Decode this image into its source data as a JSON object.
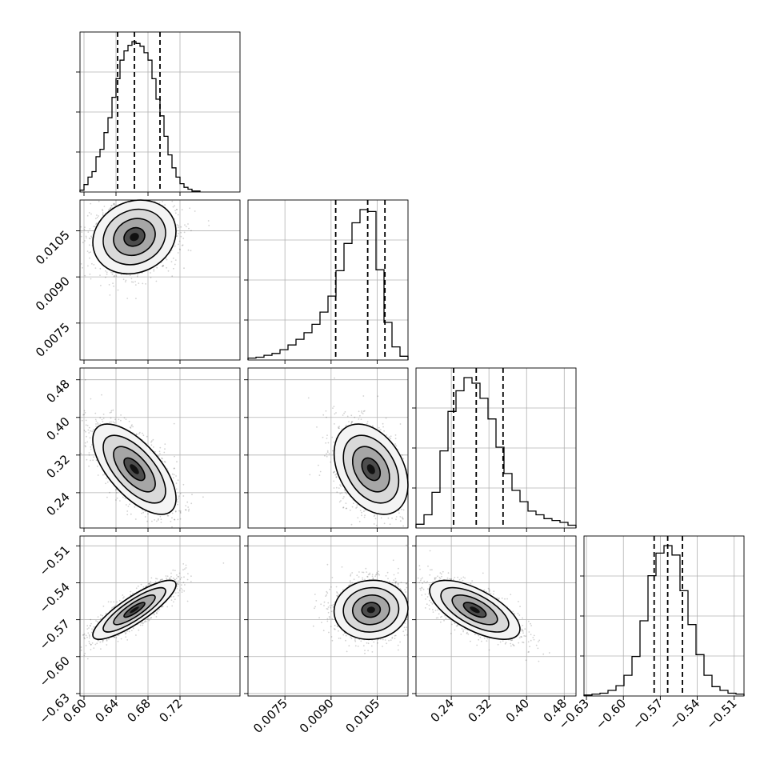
{
  "chart_data": {
    "type": "corner",
    "grid": true,
    "params": [
      {
        "range": [
          0.595,
          0.795
        ],
        "ticks": [
          0.6,
          0.64,
          0.68,
          0.72
        ],
        "tick_labels": [
          "0.60",
          "0.64",
          "0.68",
          "0.72"
        ],
        "median": 0.663,
        "q16": 0.642,
        "q84": 0.695,
        "mean": 0.663,
        "sd": 0.026
      },
      {
        "range": [
          0.0063,
          0.0115
        ],
        "ticks": [
          0.0075,
          0.009,
          0.0105
        ],
        "tick_labels": [
          "0.0075",
          "0.0090",
          "0.0105"
        ],
        "median": 0.01019,
        "q16": 0.00915,
        "q84": 0.01075,
        "mean": 0.0103,
        "sd": 0.0006
      },
      {
        "range": [
          0.165,
          0.505
        ],
        "ticks": [
          0.24,
          0.32,
          0.4,
          0.48
        ],
        "tick_labels": [
          "0.24",
          "0.32",
          "0.40",
          "0.48"
        ],
        "median": 0.293,
        "q16": 0.245,
        "q84": 0.35,
        "mean": 0.29,
        "sd": 0.048
      },
      {
        "range": [
          -0.632,
          -0.502
        ],
        "ticks": [
          -0.63,
          -0.6,
          -0.57,
          -0.54,
          -0.51
        ],
        "tick_labels": [
          "−0.63",
          "−0.60",
          "−0.57",
          "−0.54",
          "−0.51"
        ],
        "median": -0.564,
        "q16": -0.575,
        "q84": -0.552,
        "mean": -0.562,
        "sd": 0.012
      }
    ],
    "histograms": [
      {
        "param": 0,
        "bin_edges": [
          0.595,
          0.6,
          0.605,
          0.61,
          0.615,
          0.62,
          0.625,
          0.63,
          0.635,
          0.64,
          0.645,
          0.65,
          0.655,
          0.66,
          0.665,
          0.67,
          0.675,
          0.68,
          0.685,
          0.69,
          0.695,
          0.7,
          0.705,
          0.71,
          0.715,
          0.72,
          0.725,
          0.73,
          0.735,
          0.74,
          0.745
        ],
        "counts": [
          2,
          8,
          16,
          22,
          38,
          46,
          64,
          80,
          102,
          122,
          142,
          152,
          158,
          162,
          160,
          157,
          150,
          142,
          122,
          100,
          82,
          60,
          40,
          26,
          16,
          9,
          5,
          3,
          1,
          1
        ]
      },
      {
        "param": 1,
        "bin_edges": [
          0.0063,
          0.00656,
          0.00682,
          0.00708,
          0.00734,
          0.0076,
          0.00786,
          0.00812,
          0.00838,
          0.00864,
          0.0089,
          0.00916,
          0.00942,
          0.00968,
          0.00994,
          0.0102,
          0.01046,
          0.01072,
          0.01098,
          0.01124,
          0.0115
        ],
        "counts": [
          2,
          3,
          5,
          7,
          11,
          16,
          22,
          29,
          38,
          51,
          68,
          95,
          124,
          146,
          160,
          158,
          96,
          40,
          14,
          4
        ]
      },
      {
        "param": 2,
        "bin_edges": [
          0.165,
          0.182,
          0.199,
          0.216,
          0.233,
          0.25,
          0.267,
          0.284,
          0.301,
          0.318,
          0.335,
          0.352,
          0.369,
          0.386,
          0.403,
          0.42,
          0.437,
          0.454,
          0.471,
          0.488,
          0.505
        ],
        "counts": [
          4,
          14,
          38,
          82,
          124,
          146,
          160,
          154,
          138,
          116,
          86,
          58,
          40,
          28,
          18,
          14,
          10,
          8,
          6,
          3
        ]
      },
      {
        "param": 3,
        "bin_edges": [
          -0.632,
          -0.6255,
          -0.619,
          -0.6125,
          -0.606,
          -0.5995,
          -0.593,
          -0.5865,
          -0.58,
          -0.5735,
          -0.567,
          -0.5605,
          -0.554,
          -0.5475,
          -0.541,
          -0.5345,
          -0.528,
          -0.5215,
          -0.515,
          -0.5085,
          -0.502
        ],
        "counts": [
          1,
          2,
          3,
          6,
          11,
          22,
          42,
          80,
          128,
          152,
          160,
          150,
          112,
          76,
          44,
          22,
          10,
          6,
          3,
          2
        ]
      }
    ],
    "correlations": [
      {
        "x": 0,
        "y": 1,
        "r": 0.15
      },
      {
        "x": 0,
        "y": 2,
        "r": -0.65
      },
      {
        "x": 1,
        "y": 2,
        "r": -0.35
      },
      {
        "x": 0,
        "y": 3,
        "r": 0.85
      },
      {
        "x": 1,
        "y": 3,
        "r": 0.05
      },
      {
        "x": 2,
        "y": 3,
        "r": -0.65
      }
    ],
    "contour_levels_sigma": [
      0.5,
      1.0,
      1.5,
      2.0
    ]
  }
}
